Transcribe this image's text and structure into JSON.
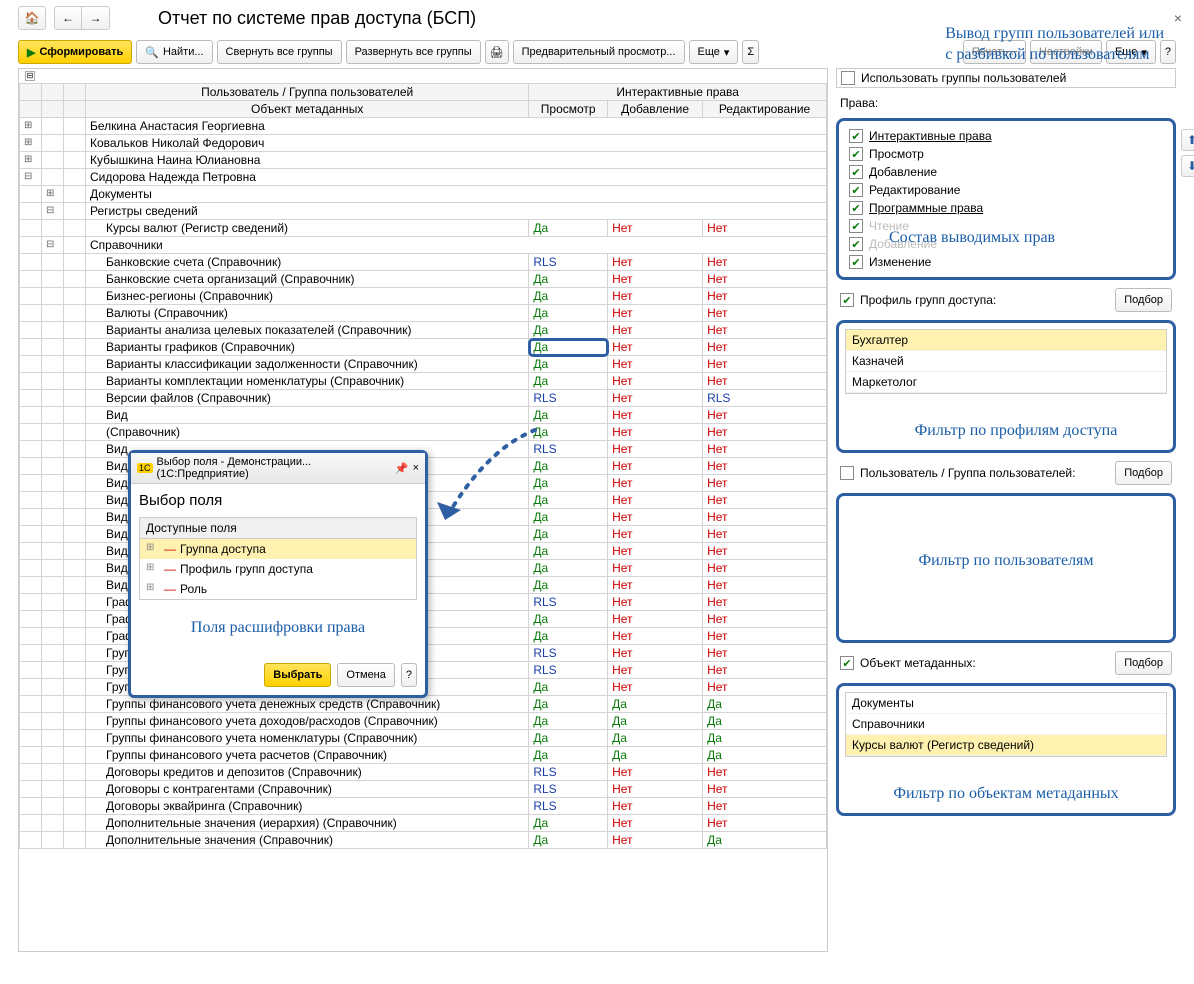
{
  "title": "Отчет по системе прав доступа (БСП)",
  "annotations": {
    "top": "Вывод групп пользователей или\nс разбивкой по пользователям",
    "rights_panel": "Состав выводимых прав",
    "profile_filter": "Фильтр по профилям доступа",
    "user_filter": "Фильтр по пользователям",
    "meta_filter": "Фильтр по объектам метаданных",
    "popup": "Поля расшифровки права"
  },
  "toolbar": {
    "form": "Сформировать",
    "find": "Найти...",
    "collapse": "Свернуть все группы",
    "expand": "Развернуть все группы",
    "preview": "Предварительный просмотр...",
    "more": "Еще",
    "print_crossed": "Печать...",
    "settings_crossed": "Настройки",
    "help": "?"
  },
  "headers": {
    "user": "Пользователь / Группа пользователей",
    "object": "Объект метаданных",
    "interactive": "Интерактивные права",
    "view": "Просмотр",
    "add": "Добавление",
    "edit": "Редактирование"
  },
  "users": [
    "Белкина Анастасия Георгиевна",
    "Ковальков Николай Федорович",
    "Кубышкина Наина Юлиановна",
    "Сидорова Надежда Петровна"
  ],
  "sections": {
    "docs": "Документы",
    "reginfo": "Регистры сведений",
    "refs": "Справочники"
  },
  "rows": [
    {
      "name": "Курсы валют (Регистр сведений)",
      "v": "Да",
      "a": "Нет",
      "e": "Нет",
      "indent": 2
    },
    {
      "name": "Банковские счета (Справочник)",
      "v": "RLS",
      "a": "Нет",
      "e": "Нет",
      "indent": 2
    },
    {
      "name": "Банковские счета организаций (Справочник)",
      "v": "Да",
      "a": "Нет",
      "e": "Нет",
      "indent": 2
    },
    {
      "name": "Бизнес-регионы (Справочник)",
      "v": "Да",
      "a": "Нет",
      "e": "Нет",
      "indent": 2
    },
    {
      "name": "Валюты (Справочник)",
      "v": "Да",
      "a": "Нет",
      "e": "Нет",
      "indent": 2
    },
    {
      "name": "Варианты анализа целевых показателей (Справочник)",
      "v": "Да",
      "a": "Нет",
      "e": "Нет",
      "indent": 2
    },
    {
      "name": "Варианты графиков (Справочник)",
      "v": "Да",
      "a": "Нет",
      "e": "Нет",
      "indent": 2,
      "hl": true
    },
    {
      "name": "Варианты классификации задолженности (Справочник)",
      "v": "Да",
      "a": "Нет",
      "e": "Нет",
      "indent": 2
    },
    {
      "name": "Варианты комплектации номенклатуры (Справочник)",
      "v": "Да",
      "a": "Нет",
      "e": "Нет",
      "indent": 2
    },
    {
      "name": "Версии файлов (Справочник)",
      "v": "RLS",
      "a": "Нет",
      "e": "RLS",
      "indent": 2
    },
    {
      "name": "Вид",
      "v": "Да",
      "a": "Нет",
      "e": "Нет",
      "indent": 2
    },
    {
      "name": "(Справочник)",
      "v": "Да",
      "a": "Нет",
      "e": "Нет",
      "indent": 2
    },
    {
      "name": "Вид",
      "v": "RLS",
      "a": "Нет",
      "e": "Нет",
      "indent": 2
    },
    {
      "name": "Вид",
      "v": "Да",
      "a": "Нет",
      "e": "Нет",
      "indent": 2
    },
    {
      "name": "Вид",
      "v": "Да",
      "a": "Нет",
      "e": "Нет",
      "indent": 2
    },
    {
      "name": "Вид",
      "v": "Да",
      "a": "Нет",
      "e": "Нет",
      "indent": 2
    },
    {
      "name": "Вид",
      "v": "Да",
      "a": "Нет",
      "e": "Нет",
      "indent": 2
    },
    {
      "name": "Вид",
      "v": "Да",
      "a": "Нет",
      "e": "Нет",
      "indent": 2
    },
    {
      "name": "Вид",
      "v": "Да",
      "a": "Нет",
      "e": "Нет",
      "indent": 2
    },
    {
      "name": "Вид                                                              ик)",
      "v": "Да",
      "a": "Нет",
      "e": "Нет",
      "indent": 2
    },
    {
      "name": "Вид",
      "v": "Да",
      "a": "Нет",
      "e": "Нет",
      "indent": 2
    },
    {
      "name": "Граф",
      "v": "RLS",
      "a": "Нет",
      "e": "Нет",
      "indent": 2
    },
    {
      "name": "Граф",
      "v": "Да",
      "a": "Нет",
      "e": "Нет",
      "indent": 2
    },
    {
      "name": "Граф",
      "v": "Да",
      "a": "Нет",
      "e": "Нет",
      "indent": 2
    },
    {
      "name": "Группы доступа партнеров (Справочник)",
      "v": "RLS",
      "a": "Нет",
      "e": "Нет",
      "indent": 2
    },
    {
      "name": "Группы доступа физических лиц (Справочник)",
      "v": "RLS",
      "a": "Нет",
      "e": "Нет",
      "indent": 2
    },
    {
      "name": "Группы пользователей (Справочник)",
      "v": "Да",
      "a": "Нет",
      "e": "Нет",
      "indent": 2
    },
    {
      "name": "Группы финансового учета денежных средств (Справочник)",
      "v": "Да",
      "a": "Да",
      "e": "Да",
      "indent": 2
    },
    {
      "name": "Группы финансового учета доходов/расходов (Справочник)",
      "v": "Да",
      "a": "Да",
      "e": "Да",
      "indent": 2
    },
    {
      "name": "Группы финансового учета номенклатуры (Справочник)",
      "v": "Да",
      "a": "Да",
      "e": "Да",
      "indent": 2
    },
    {
      "name": "Группы финансового учета расчетов (Справочник)",
      "v": "Да",
      "a": "Да",
      "e": "Да",
      "indent": 2
    },
    {
      "name": "Договоры кредитов и депозитов (Справочник)",
      "v": "RLS",
      "a": "Нет",
      "e": "Нет",
      "indent": 2
    },
    {
      "name": "Договоры с контрагентами (Справочник)",
      "v": "RLS",
      "a": "Нет",
      "e": "Нет",
      "indent": 2
    },
    {
      "name": "Договоры эквайринга (Справочник)",
      "v": "RLS",
      "a": "Нет",
      "e": "Нет",
      "indent": 2
    },
    {
      "name": "Дополнительные значения (иерархия) (Справочник)",
      "v": "Да",
      "a": "Нет",
      "e": "Нет",
      "indent": 2
    },
    {
      "name": "Дополнительные значения (Справочник)",
      "v": "Да",
      "a": "Нет",
      "e": "Да",
      "indent": 2
    }
  ],
  "popup": {
    "wintitle": "Выбор поля - Демонстрации...  (1С:Предприятие)",
    "header": "Выбор поля",
    "available": "Доступные поля",
    "items": [
      "Группа доступа",
      "Профиль групп доступа",
      "Роль"
    ],
    "select": "Выбрать",
    "cancel": "Отмена"
  },
  "side": {
    "use_groups": "Использовать группы пользователей",
    "rights_label": "Права:",
    "rights": [
      {
        "label": "Интерактивные права",
        "u": true
      },
      {
        "label": "Просмотр"
      },
      {
        "label": "Добавление"
      },
      {
        "label": "Редактирование"
      },
      {
        "label": "Программные права",
        "u": true
      },
      {
        "label": "Чтение",
        "dim": true
      },
      {
        "label": "Добавление",
        "dim": true
      },
      {
        "label": "Изменение"
      }
    ],
    "profile_label": "Профиль групп доступа:",
    "profiles": [
      "Бухгалтер",
      "Казначей",
      "Маркетолог"
    ],
    "user_label": "Пользователь / Группа пользователей:",
    "meta_label": "Объект метаданных:",
    "meta_items": [
      "Документы",
      "Справочники",
      "Курсы валют (Регистр сведений)"
    ],
    "select_btn": "Подбор"
  }
}
